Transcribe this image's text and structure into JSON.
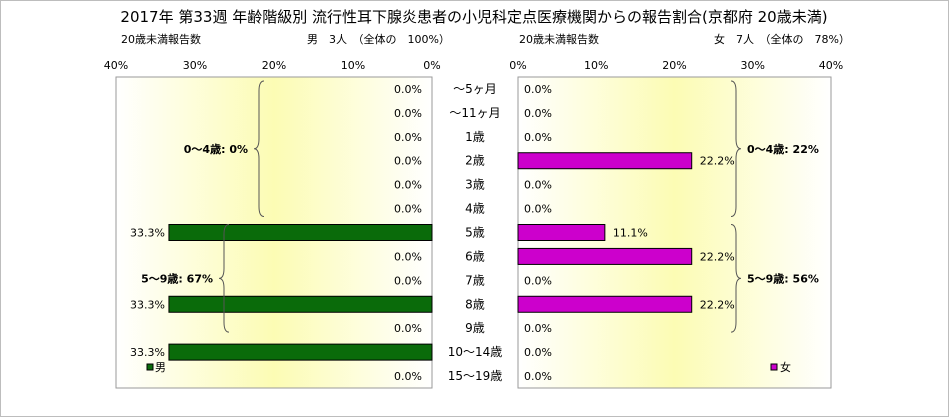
{
  "chart_data": {
    "type": "bar",
    "title": "2017年 第33週 年齢階級別 流行性耳下腺炎患者の小児科定点医療機関からの報告割合(京都府 20歳未満)",
    "categories": [
      "～5ヶ月",
      "～11ヶ月",
      "1歳",
      "2歳",
      "3歳",
      "4歳",
      "5歳",
      "6歳",
      "7歳",
      "8歳",
      "9歳",
      "10～14歳",
      "15～19歳"
    ],
    "xlim": [
      0,
      40
    ],
    "ticks": [
      "0%",
      "10%",
      "20%",
      "30%",
      "40%"
    ],
    "colors": {
      "male": "#0a6b0a",
      "female": "#cc00cc",
      "plot_bg_edge": "#ffffff",
      "plot_bg_center": "#fcfcb4"
    },
    "series": [
      {
        "name": "男",
        "header_left": "20歳未満報告数",
        "header_right": "男　3人　（全体の　100%）",
        "values": [
          0,
          0,
          0,
          0,
          0,
          0,
          33.3,
          0,
          0,
          33.3,
          0,
          33.3,
          0
        ],
        "labels": [
          "0.0%",
          "0.0%",
          "0.0%",
          "0.0%",
          "0.0%",
          "0.0%",
          "33.3%",
          "0.0%",
          "0.0%",
          "33.3%",
          "0.0%",
          "33.3%",
          "0.0%"
        ],
        "groups": [
          "0～4歳: 0%",
          "5～9歳: 67%"
        ]
      },
      {
        "name": "女",
        "header_left": "20歳未満報告数",
        "header_right": "女　7人　（全体の　78%）",
        "values": [
          0,
          0,
          0,
          22.2,
          0,
          0,
          11.1,
          22.2,
          0,
          22.2,
          0,
          0,
          0
        ],
        "labels": [
          "0.0%",
          "0.0%",
          "0.0%",
          "22.2%",
          "0.0%",
          "0.0%",
          "11.1%",
          "22.2%",
          "0.0%",
          "22.2%",
          "0.0%",
          "0.0%",
          "0.0%"
        ],
        "groups": [
          "0～4歳: 22%",
          "5～9歳: 56%"
        ]
      }
    ]
  }
}
